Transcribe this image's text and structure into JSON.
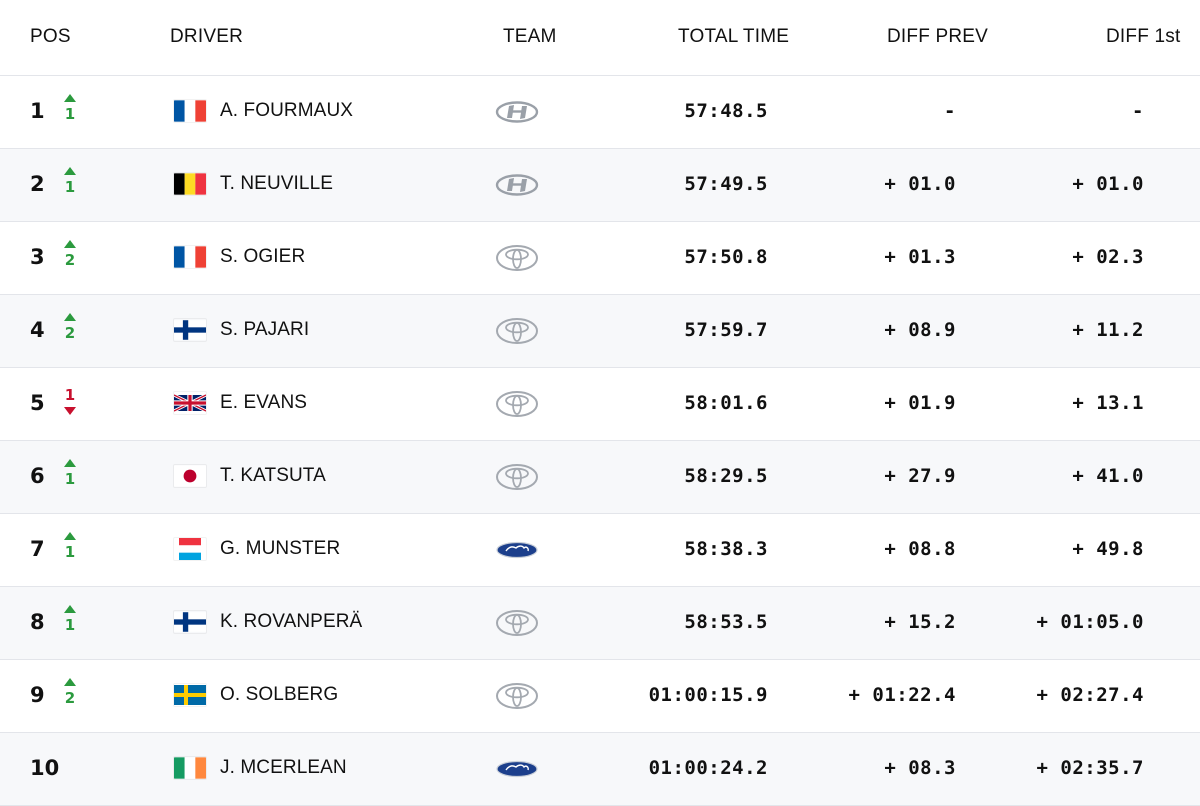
{
  "headers": {
    "pos": "POS",
    "driver": "DRIVER",
    "team": "TEAM",
    "total_time": "TOTAL TIME",
    "diff_prev": "DIFF PREV",
    "diff_1st": "DIFF 1st"
  },
  "colors": {
    "up": "#2b9a3e",
    "down": "#c8102e",
    "row_alt": "#f7f8fa",
    "divider": "#e3e5ea"
  },
  "rows": [
    {
      "pos": "1",
      "change_dir": "up",
      "change": "1",
      "flag": "france-flag",
      "driver": "A. FOURMAUX",
      "team": "hyundai-logo",
      "total_time": "57:48.5",
      "diff_prev": "-",
      "diff_1st": "-"
    },
    {
      "pos": "2",
      "change_dir": "up",
      "change": "1",
      "flag": "belgium-flag",
      "driver": "T. NEUVILLE",
      "team": "hyundai-logo",
      "total_time": "57:49.5",
      "diff_prev": "+ 01.0",
      "diff_1st": "+ 01.0"
    },
    {
      "pos": "3",
      "change_dir": "up",
      "change": "2",
      "flag": "france-flag",
      "driver": "S. OGIER",
      "team": "toyota-logo",
      "total_time": "57:50.8",
      "diff_prev": "+ 01.3",
      "diff_1st": "+ 02.3"
    },
    {
      "pos": "4",
      "change_dir": "up",
      "change": "2",
      "flag": "finland-flag",
      "driver": "S. PAJARI",
      "team": "toyota-logo",
      "total_time": "57:59.7",
      "diff_prev": "+ 08.9",
      "diff_1st": "+ 11.2"
    },
    {
      "pos": "5",
      "change_dir": "down",
      "change": "1",
      "flag": "uk-flag",
      "driver": "E. EVANS",
      "team": "toyota-logo",
      "total_time": "58:01.6",
      "diff_prev": "+ 01.9",
      "diff_1st": "+ 13.1"
    },
    {
      "pos": "6",
      "change_dir": "up",
      "change": "1",
      "flag": "japan-flag",
      "driver": "T. KATSUTA",
      "team": "toyota-logo",
      "total_time": "58:29.5",
      "diff_prev": "+ 27.9",
      "diff_1st": "+ 41.0"
    },
    {
      "pos": "7",
      "change_dir": "up",
      "change": "1",
      "flag": "luxembourg-flag",
      "driver": "G. MUNSTER",
      "team": "ford-logo",
      "total_time": "58:38.3",
      "diff_prev": "+ 08.8",
      "diff_1st": "+ 49.8"
    },
    {
      "pos": "8",
      "change_dir": "up",
      "change": "1",
      "flag": "finland-flag",
      "driver": "K. ROVANPERÄ",
      "team": "toyota-logo",
      "total_time": "58:53.5",
      "diff_prev": "+ 15.2",
      "diff_1st": "+ 01:05.0"
    },
    {
      "pos": "9",
      "change_dir": "up",
      "change": "2",
      "flag": "sweden-flag",
      "driver": "O. SOLBERG",
      "team": "toyota-logo",
      "total_time": "01:00:15.9",
      "diff_prev": "+ 01:22.4",
      "diff_1st": "+ 02:27.4"
    },
    {
      "pos": "10",
      "change_dir": "none",
      "change": "",
      "flag": "ireland-flag",
      "driver": "J. MCERLEAN",
      "team": "ford-logo",
      "total_time": "01:00:24.2",
      "diff_prev": "+ 08.3",
      "diff_1st": "+ 02:35.7"
    }
  ]
}
